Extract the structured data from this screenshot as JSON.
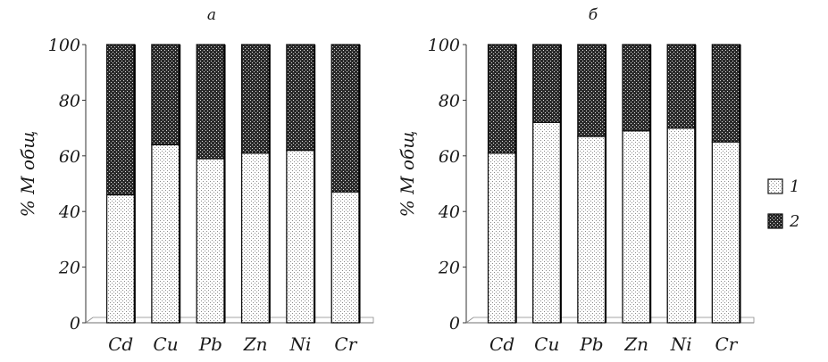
{
  "chart_data": [
    {
      "type": "bar",
      "stacked": true,
      "title": "а",
      "ylabel": "% M общ",
      "ylim": [
        0,
        100
      ],
      "yticks": [
        "0",
        "20",
        "40",
        "60",
        "80",
        "100"
      ],
      "categories": [
        "Cd",
        "Cu",
        "Pb",
        "Zn",
        "Ni",
        "Cr"
      ],
      "series": [
        {
          "name": "1",
          "values": [
            46,
            64,
            59,
            61,
            62,
            47
          ]
        },
        {
          "name": "2",
          "values": [
            54,
            36,
            41,
            39,
            38,
            53
          ]
        }
      ]
    },
    {
      "type": "bar",
      "stacked": true,
      "title": "б",
      "ylabel": "% M общ",
      "ylim": [
        0,
        100
      ],
      "yticks": [
        "0",
        "20",
        "40",
        "60",
        "80",
        "100"
      ],
      "categories": [
        "Cd",
        "Cu",
        "Pb",
        "Zn",
        "Ni",
        "Cr"
      ],
      "series": [
        {
          "name": "1",
          "values": [
            61,
            72,
            67,
            69,
            70,
            65
          ]
        },
        {
          "name": "2",
          "values": [
            39,
            28,
            33,
            31,
            30,
            35
          ]
        }
      ]
    }
  ],
  "legend": [
    {
      "label": "1"
    },
    {
      "label": "2"
    }
  ]
}
